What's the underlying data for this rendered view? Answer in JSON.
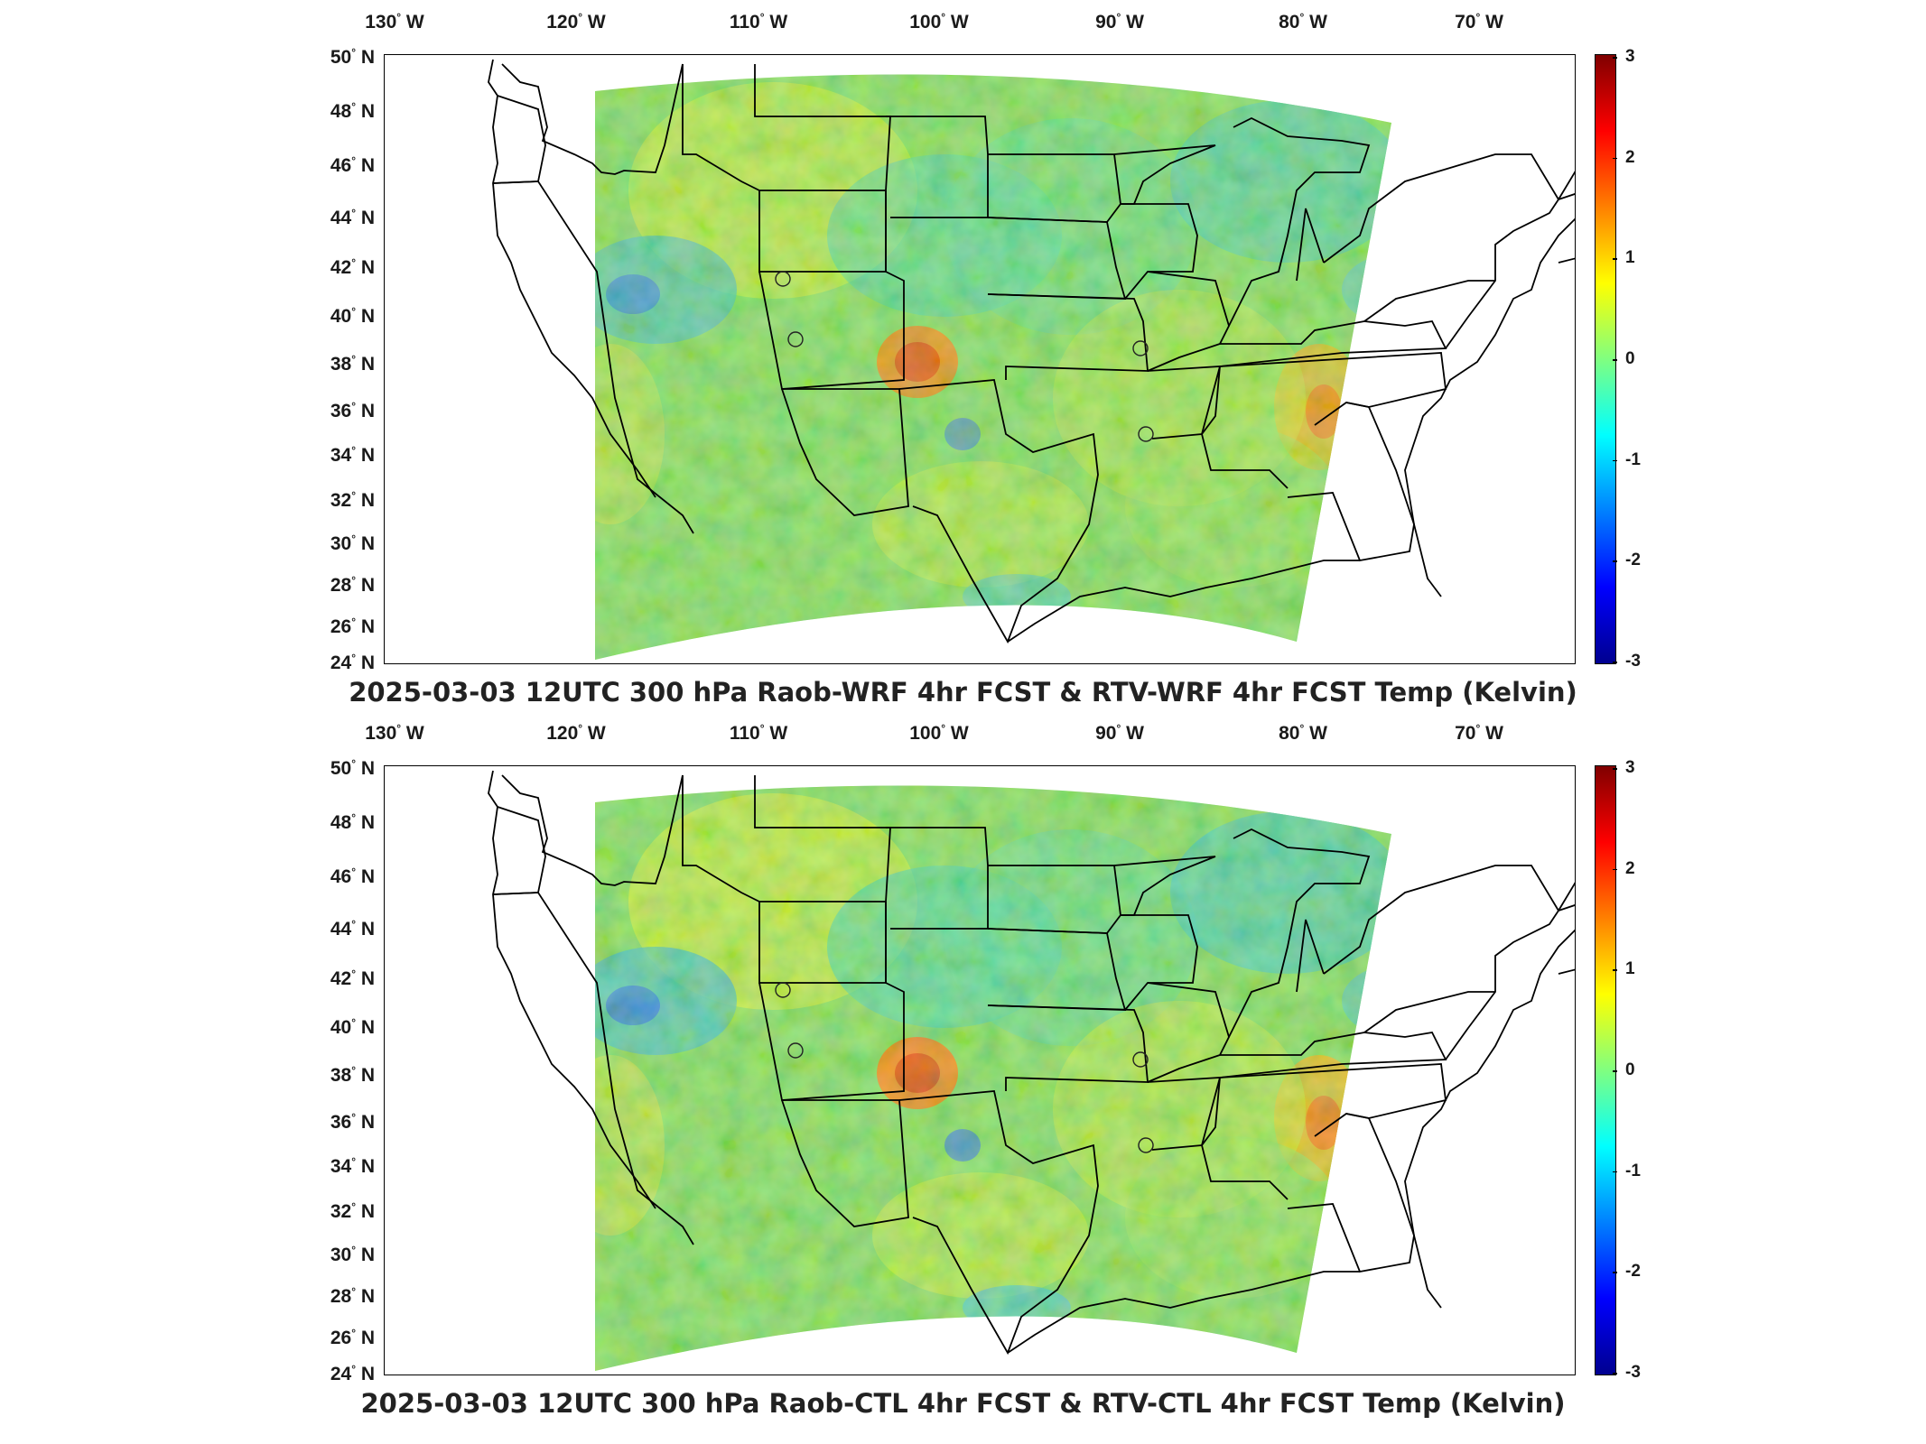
{
  "panels": [
    {
      "title": "2025-03-03 12UTC 300 hPa Raob-WRF 4hr FCST & RTV-WRF 4hr FCST Temp (Kelvin)",
      "variant": "wrf"
    },
    {
      "title": "2025-03-03 12UTC 300 hPa Raob-CTL 4hr FCST & RTV-CTL 4hr FCST Temp (Kelvin)",
      "variant": "ctl"
    }
  ],
  "longitude_labels": [
    "130",
    "120",
    "110",
    "100",
    "90",
    "80",
    "70"
  ],
  "lon_suffix": "W",
  "latitude_labels": [
    "50",
    "48",
    "46",
    "44",
    "42",
    "40",
    "38",
    "36",
    "34",
    "32",
    "30",
    "28",
    "26",
    "24"
  ],
  "lat_suffix": "N",
  "degree_symbol": "°",
  "colorbar": {
    "ticks": [
      "3",
      "2",
      "1",
      "0",
      "-1",
      "-2",
      "-3"
    ],
    "min": -3,
    "max": 3,
    "colormap": "jet"
  },
  "raob_sites": [
    "site-1",
    "site-2",
    "site-3",
    "site-4"
  ],
  "colors": {
    "background_field": "#62e08a",
    "warm": "#ff6600",
    "cold": "#0050ff",
    "borders": "#000000"
  }
}
